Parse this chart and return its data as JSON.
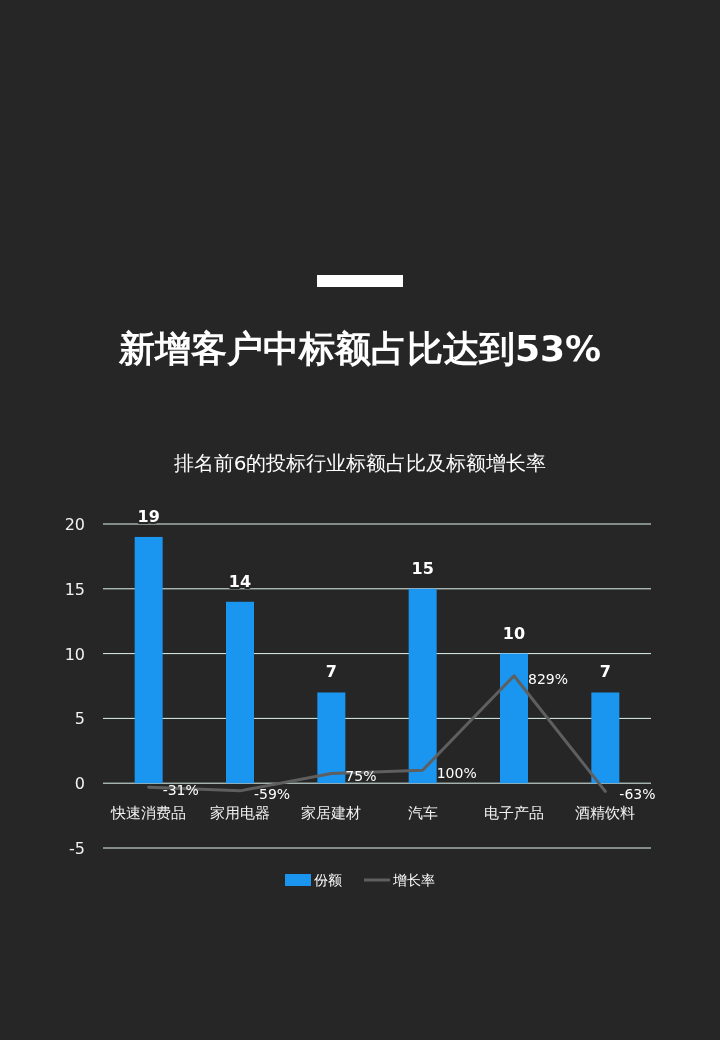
{
  "chart_data": {
    "type": "bar",
    "title": "新增客户中标额占比达到53%",
    "subtitle": "排名前6的投标行业标额占比及标额增长率",
    "categories": [
      "快速消费品",
      "家用电器",
      "家居建材",
      "汽车",
      "电子产品",
      "酒精饮料"
    ],
    "series": [
      {
        "name": "份额",
        "color": "#1a96f0",
        "values": [
          19,
          14,
          7,
          15,
          10,
          7
        ],
        "value_labels": [
          "19",
          "14",
          "7",
          "15",
          "10",
          "7"
        ]
      },
      {
        "name": "增长率",
        "type": "line",
        "color": "#5f5f5f",
        "values": [
          -0.31,
          -0.59,
          0.75,
          1.0,
          8.29,
          -0.63
        ],
        "value_labels": [
          "-31%",
          "-59%",
          "75%",
          "100%",
          "829%",
          "-63%"
        ]
      }
    ],
    "ylim": [
      -5,
      20
    ],
    "yticks": [
      -5,
      0,
      5,
      10,
      15,
      20
    ],
    "grid": "y",
    "legend": "bottom"
  }
}
